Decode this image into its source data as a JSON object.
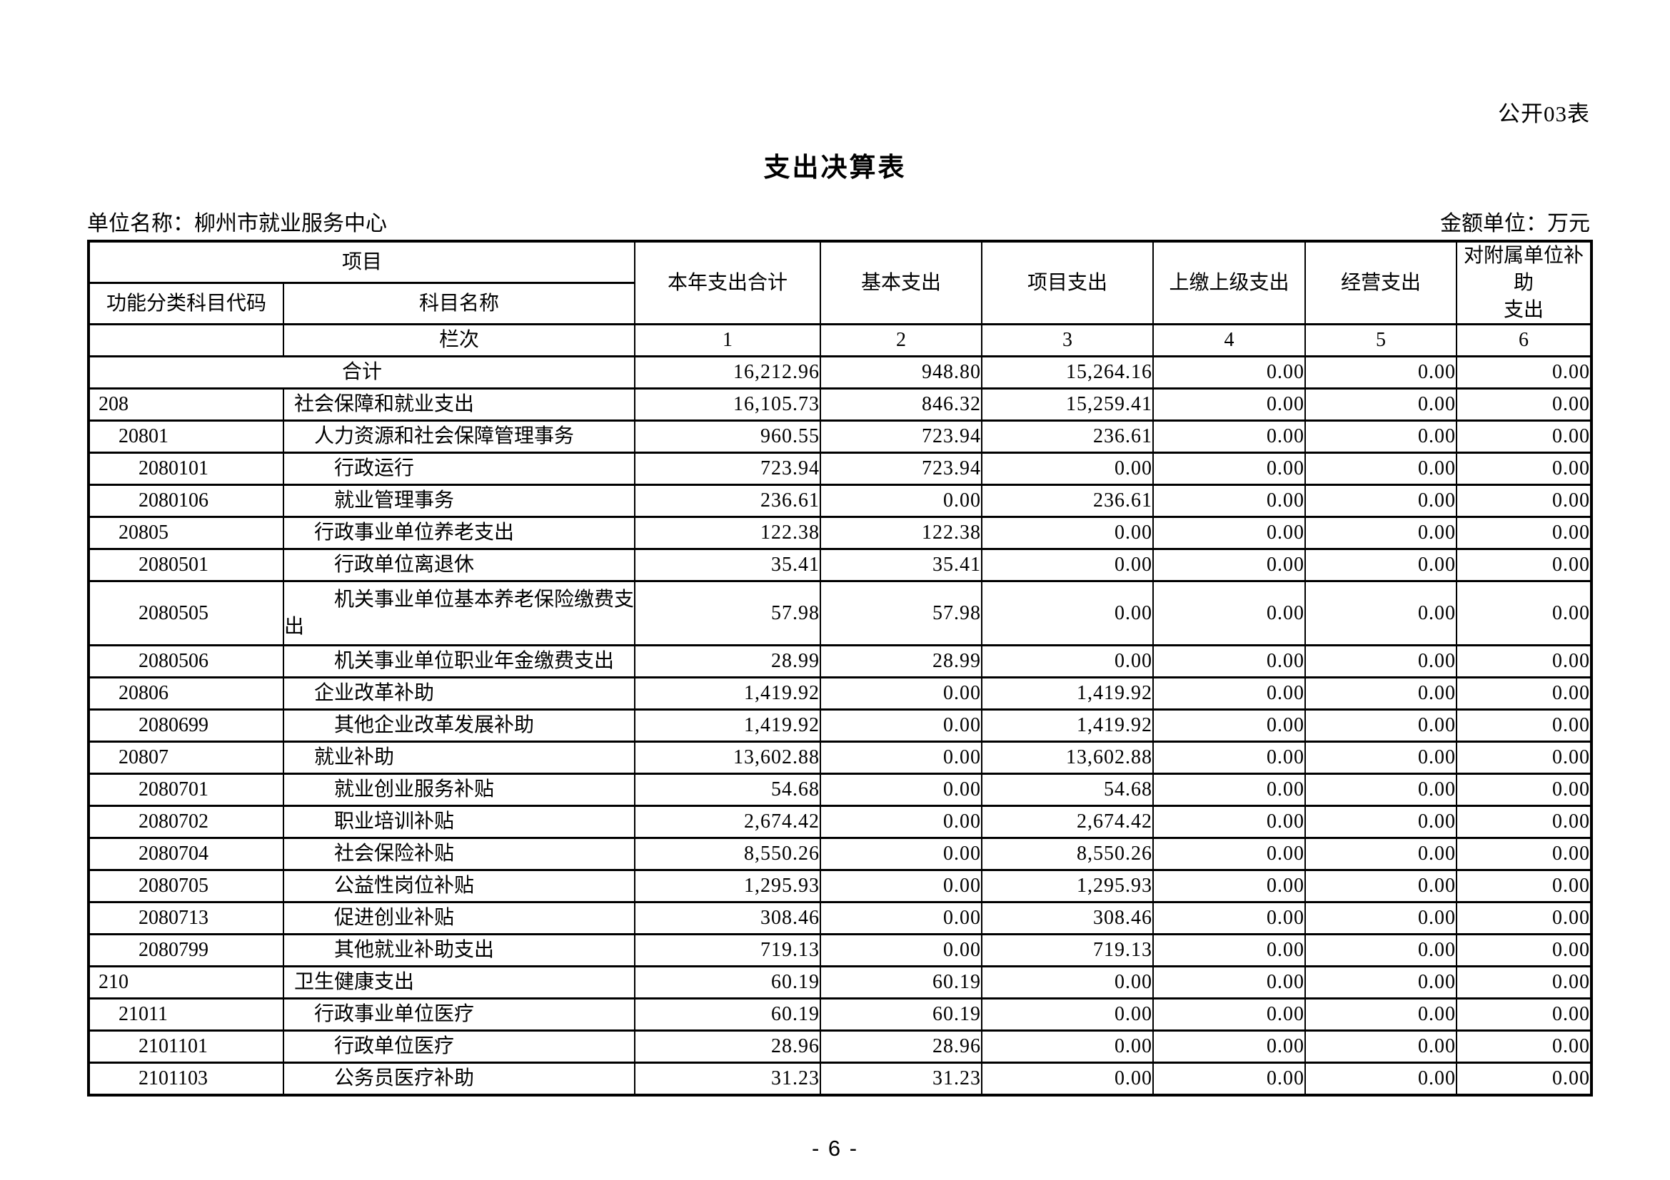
{
  "page": {
    "doc_label": "公开03表",
    "title": "支出决算表",
    "unit_label": "单位名称：柳州市就业服务中心",
    "amount_unit_label": "金额单位：万元",
    "page_number": "- 6 -"
  },
  "table": {
    "header": {
      "project": "项目",
      "code_label": "功能分类科目代码",
      "subject_name_label": "科目名称",
      "col_total": "本年支出合计",
      "col_basic": "基本支出",
      "col_project": "项目支出",
      "col_upper": "上缴上级支出",
      "col_operating": "经营支出",
      "col_affiliated": "对附属单位补助\n支出",
      "lanci": "栏次",
      "col_numbers": [
        "1",
        "2",
        "3",
        "4",
        "5",
        "6"
      ]
    },
    "rows": [
      {
        "code": "",
        "name": "合计",
        "level": 0,
        "merged": true,
        "values": [
          "16,212.96",
          "948.80",
          "15,264.16",
          "0.00",
          "0.00",
          "0.00"
        ]
      },
      {
        "code": "208",
        "name": "社会保障和就业支出",
        "level": 0,
        "values": [
          "16,105.73",
          "846.32",
          "15,259.41",
          "0.00",
          "0.00",
          "0.00"
        ]
      },
      {
        "code": "20801",
        "name": "人力资源和社会保障管理事务",
        "level": 1,
        "values": [
          "960.55",
          "723.94",
          "236.61",
          "0.00",
          "0.00",
          "0.00"
        ]
      },
      {
        "code": "2080101",
        "name": "行政运行",
        "level": 2,
        "values": [
          "723.94",
          "723.94",
          "0.00",
          "0.00",
          "0.00",
          "0.00"
        ]
      },
      {
        "code": "2080106",
        "name": "就业管理事务",
        "level": 2,
        "values": [
          "236.61",
          "0.00",
          "236.61",
          "0.00",
          "0.00",
          "0.00"
        ]
      },
      {
        "code": "20805",
        "name": "行政事业单位养老支出",
        "level": 1,
        "values": [
          "122.38",
          "122.38",
          "0.00",
          "0.00",
          "0.00",
          "0.00"
        ]
      },
      {
        "code": "2080501",
        "name": "行政单位离退休",
        "level": 2,
        "values": [
          "35.41",
          "35.41",
          "0.00",
          "0.00",
          "0.00",
          "0.00"
        ]
      },
      {
        "code": "2080505",
        "name": "机关事业单位基本养老保险缴费支出",
        "level": 2,
        "tall": true,
        "values": [
          "57.98",
          "57.98",
          "0.00",
          "0.00",
          "0.00",
          "0.00"
        ]
      },
      {
        "code": "2080506",
        "name": "机关事业单位职业年金缴费支出",
        "level": 2,
        "values": [
          "28.99",
          "28.99",
          "0.00",
          "0.00",
          "0.00",
          "0.00"
        ]
      },
      {
        "code": "20806",
        "name": "企业改革补助",
        "level": 1,
        "values": [
          "1,419.92",
          "0.00",
          "1,419.92",
          "0.00",
          "0.00",
          "0.00"
        ]
      },
      {
        "code": "2080699",
        "name": "其他企业改革发展补助",
        "level": 2,
        "values": [
          "1,419.92",
          "0.00",
          "1,419.92",
          "0.00",
          "0.00",
          "0.00"
        ]
      },
      {
        "code": "20807",
        "name": "就业补助",
        "level": 1,
        "values": [
          "13,602.88",
          "0.00",
          "13,602.88",
          "0.00",
          "0.00",
          "0.00"
        ]
      },
      {
        "code": "2080701",
        "name": "就业创业服务补贴",
        "level": 2,
        "values": [
          "54.68",
          "0.00",
          "54.68",
          "0.00",
          "0.00",
          "0.00"
        ]
      },
      {
        "code": "2080702",
        "name": "职业培训补贴",
        "level": 2,
        "values": [
          "2,674.42",
          "0.00",
          "2,674.42",
          "0.00",
          "0.00",
          "0.00"
        ]
      },
      {
        "code": "2080704",
        "name": "社会保险补贴",
        "level": 2,
        "values": [
          "8,550.26",
          "0.00",
          "8,550.26",
          "0.00",
          "0.00",
          "0.00"
        ]
      },
      {
        "code": "2080705",
        "name": "公益性岗位补贴",
        "level": 2,
        "values": [
          "1,295.93",
          "0.00",
          "1,295.93",
          "0.00",
          "0.00",
          "0.00"
        ]
      },
      {
        "code": "2080713",
        "name": "促进创业补贴",
        "level": 2,
        "values": [
          "308.46",
          "0.00",
          "308.46",
          "0.00",
          "0.00",
          "0.00"
        ]
      },
      {
        "code": "2080799",
        "name": "其他就业补助支出",
        "level": 2,
        "values": [
          "719.13",
          "0.00",
          "719.13",
          "0.00",
          "0.00",
          "0.00"
        ]
      },
      {
        "code": "210",
        "name": "卫生健康支出",
        "level": 0,
        "values": [
          "60.19",
          "60.19",
          "0.00",
          "0.00",
          "0.00",
          "0.00"
        ]
      },
      {
        "code": "21011",
        "name": "行政事业单位医疗",
        "level": 1,
        "values": [
          "60.19",
          "60.19",
          "0.00",
          "0.00",
          "0.00",
          "0.00"
        ]
      },
      {
        "code": "2101101",
        "name": "行政单位医疗",
        "level": 2,
        "values": [
          "28.96",
          "28.96",
          "0.00",
          "0.00",
          "0.00",
          "0.00"
        ]
      },
      {
        "code": "2101103",
        "name": "公务员医疗补助",
        "level": 2,
        "values": [
          "31.23",
          "31.23",
          "0.00",
          "0.00",
          "0.00",
          "0.00"
        ]
      }
    ]
  }
}
